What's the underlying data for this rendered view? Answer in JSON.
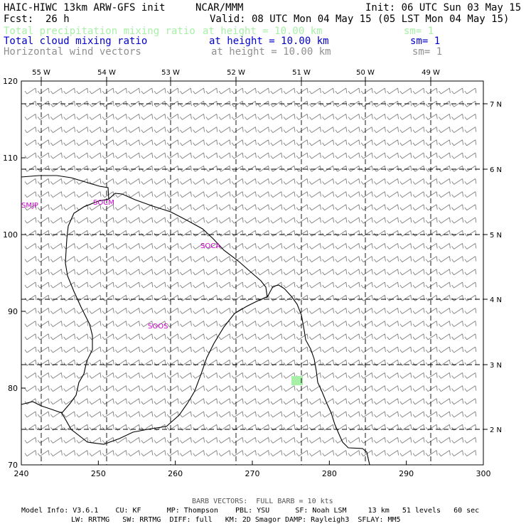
{
  "header": {
    "title_left": "HAIC-HIWC 13km ARW-GFS init",
    "org": "NCAR/MMM",
    "init": "Init: 06 UTC Sun 03 May 15",
    "fcst_label": "Fcst:",
    "fcst_value": "26 h",
    "valid": "Valid: 08 UTC Mon 04 May 15 (05 LST Mon 04 May 15)",
    "fields": [
      {
        "name": "Total precipitation mixing ratio",
        "height": "at height = 10.00 km",
        "sm": "sm= 1",
        "color": "#a8f0a8"
      },
      {
        "name": "Total cloud mixing ratio",
        "height": "at height = 10.00 km",
        "sm": "sm= 1",
        "color": "#0000cc"
      },
      {
        "name": "Horizontal wind vectors",
        "height": "at height = 10.00 km",
        "sm": "sm= 1",
        "color": "#909090"
      }
    ]
  },
  "map": {
    "x_ticks": [
      "240",
      "250",
      "260",
      "270",
      "280",
      "290",
      "300"
    ],
    "y_ticks": [
      "70",
      "80",
      "90",
      "100",
      "110",
      "120"
    ],
    "lon_labels": [
      "55 W",
      "54 W",
      "53 W",
      "52 W",
      "51 W",
      "50 W",
      "49 W"
    ],
    "lat_labels": [
      "7 N",
      "6 N",
      "5 N",
      "4 N",
      "3 N",
      "2 N"
    ],
    "station_labels": [
      "SMJP",
      "SOCM",
      "SOCA",
      "SOOS"
    ],
    "colors": {
      "stations": "#cc00cc",
      "barbs": "#808080",
      "precip_patch": "#a8f0a8",
      "coast": "#000000"
    }
  },
  "footer": {
    "barb_note": "BARB VECTORS:  FULL BARB = 10 kts",
    "line1": "Model Info: V3.6.1    CU: KF      MP: Thompson    PBL: YSU      SF: Noah LSM     13 km   51 levels   60 sec",
    "line2": "LW: RRTMG   SW: RRTMG  DIFF: full   KM: 2D Smagor DAMP: Rayleigh3  SFLAY: MM5"
  }
}
